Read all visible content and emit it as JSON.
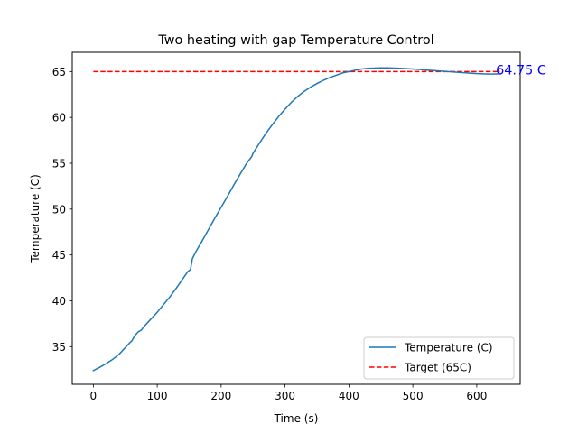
{
  "chart_data": {
    "type": "line",
    "title": "Two heating  with gap Temperature Control",
    "xlabel": "Time (s)",
    "ylabel": "Temperature (C)",
    "xlim": [
      -33,
      668
    ],
    "ylim": [
      30.9,
      67.1
    ],
    "x_ticks": [
      0,
      100,
      200,
      300,
      400,
      500,
      600
    ],
    "y_ticks": [
      35,
      40,
      45,
      50,
      55,
      60,
      65
    ],
    "grid": false,
    "legend_position": "lower right",
    "annotation": {
      "text": "64.75 C",
      "x": 637,
      "y": 64.75,
      "color": "#0000ff"
    },
    "series": [
      {
        "name": "Temperature (C)",
        "color": "#1f77b4",
        "style": "solid",
        "points": [
          [
            0,
            32.4
          ],
          [
            10,
            32.75
          ],
          [
            20,
            33.15
          ],
          [
            30,
            33.6
          ],
          [
            40,
            34.15
          ],
          [
            50,
            34.9
          ],
          [
            58,
            35.5
          ],
          [
            60,
            35.6
          ],
          [
            62,
            35.85
          ],
          [
            65,
            36.2
          ],
          [
            70,
            36.6
          ],
          [
            75,
            36.8
          ],
          [
            80,
            37.25
          ],
          [
            90,
            38.0
          ],
          [
            100,
            38.75
          ],
          [
            110,
            39.6
          ],
          [
            120,
            40.45
          ],
          [
            130,
            41.4
          ],
          [
            140,
            42.4
          ],
          [
            148,
            43.2
          ],
          [
            152,
            43.4
          ],
          [
            155,
            44.6
          ],
          [
            160,
            45.3
          ],
          [
            170,
            46.5
          ],
          [
            180,
            47.75
          ],
          [
            190,
            49.0
          ],
          [
            200,
            50.2
          ],
          [
            210,
            51.4
          ],
          [
            220,
            52.65
          ],
          [
            230,
            53.85
          ],
          [
            240,
            55.0
          ],
          [
            248,
            55.75
          ],
          [
            250,
            56.1
          ],
          [
            260,
            57.2
          ],
          [
            270,
            58.25
          ],
          [
            280,
            59.2
          ],
          [
            290,
            60.1
          ],
          [
            300,
            60.9
          ],
          [
            310,
            61.65
          ],
          [
            320,
            62.3
          ],
          [
            330,
            62.85
          ],
          [
            340,
            63.3
          ],
          [
            350,
            63.7
          ],
          [
            360,
            64.05
          ],
          [
            370,
            64.35
          ],
          [
            380,
            64.6
          ],
          [
            390,
            64.85
          ],
          [
            400,
            65.0
          ],
          [
            410,
            65.15
          ],
          [
            420,
            65.28
          ],
          [
            430,
            65.35
          ],
          [
            440,
            65.38
          ],
          [
            450,
            65.4
          ],
          [
            460,
            65.4
          ],
          [
            470,
            65.38
          ],
          [
            480,
            65.35
          ],
          [
            490,
            65.32
          ],
          [
            500,
            65.28
          ],
          [
            510,
            65.23
          ],
          [
            520,
            65.17
          ],
          [
            530,
            65.12
          ],
          [
            540,
            65.07
          ],
          [
            550,
            65.02
          ],
          [
            560,
            64.97
          ],
          [
            570,
            64.92
          ],
          [
            580,
            64.87
          ],
          [
            590,
            64.82
          ],
          [
            600,
            64.78
          ],
          [
            610,
            64.75
          ],
          [
            620,
            64.73
          ],
          [
            630,
            64.74
          ],
          [
            637,
            64.75
          ]
        ]
      },
      {
        "name": "Target (65C)",
        "color": "#ff0000",
        "style": "dashed",
        "points": [
          [
            0,
            65
          ],
          [
            637,
            65
          ]
        ]
      }
    ]
  }
}
